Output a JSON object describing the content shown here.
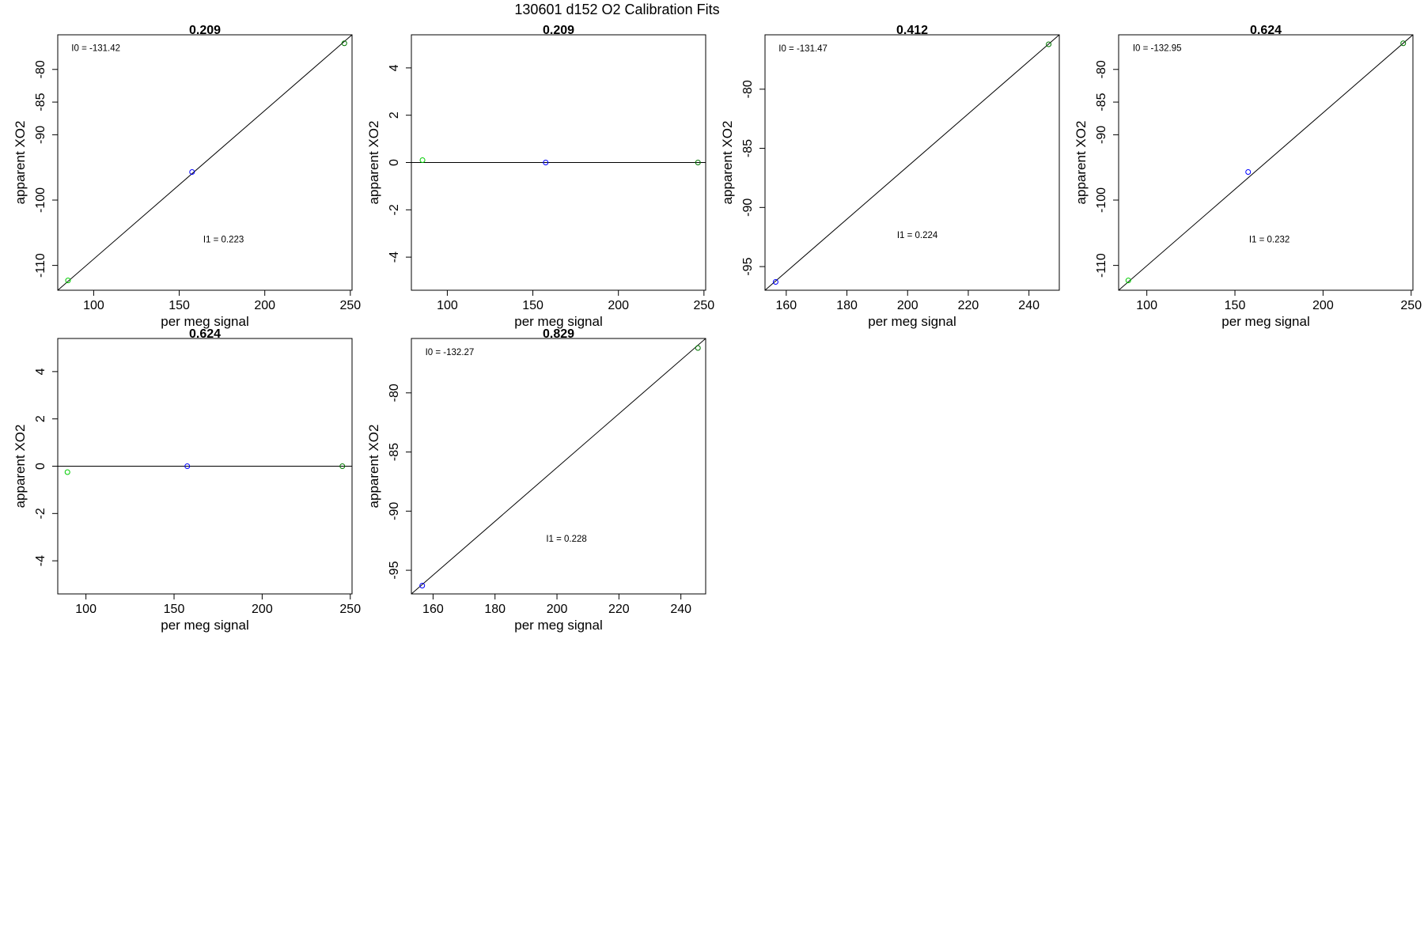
{
  "figure_title": "130601   d152   O2 Calibration Fits",
  "colors": {
    "fit_line": "#000000",
    "frame": "#000000",
    "point_low": "#00cc00",
    "point_mid": "#0000ff",
    "point_high": "#007700"
  },
  "chart_data": [
    {
      "type": "scatter",
      "title": "0.209",
      "xlabel": "per meg signal",
      "ylabel": "apparent XO2",
      "xlim": [
        79,
        251
      ],
      "ylim": [
        -113.8,
        -74.7
      ],
      "xticks": [
        100,
        150,
        200,
        250
      ],
      "yticks": [
        -80,
        -85,
        -90,
        -100,
        -110
      ],
      "points": [
        {
          "x": 85,
          "y": -112.3,
          "color": "#00cc00"
        },
        {
          "x": 157.5,
          "y": -95.7,
          "color": "#0000ff"
        },
        {
          "x": 246.5,
          "y": -76.0,
          "color": "#007700"
        }
      ],
      "fit": {
        "x1": 79,
        "y1": -113.8,
        "x2": 251,
        "y2": -74.7
      },
      "annotations": [
        {
          "text": "I0 =  -131.42",
          "x": 87,
          "y": -77.2
        },
        {
          "text": "I1 =  0.223",
          "x": 164,
          "y": -106.5
        }
      ]
    },
    {
      "type": "scatter",
      "title": "0.209",
      "xlabel": "per meg signal",
      "ylabel": "apparent XO2",
      "xlim": [
        79,
        251
      ],
      "ylim": [
        -5.4,
        5.4
      ],
      "xticks": [
        100,
        150,
        200,
        250
      ],
      "yticks": [
        4,
        2,
        0,
        -2,
        -4
      ],
      "points": [
        {
          "x": 85.5,
          "y": 0.1,
          "color": "#00cc00"
        },
        {
          "x": 157.5,
          "y": 0.0,
          "color": "#0000ff"
        },
        {
          "x": 246.5,
          "y": 0.0,
          "color": "#007700"
        }
      ],
      "fit": {
        "x1": 79,
        "y1": 0,
        "x2": 251,
        "y2": 0
      },
      "annotations": []
    },
    {
      "type": "scatter",
      "title": "0.412",
      "xlabel": "per meg signal",
      "ylabel": "apparent XO2",
      "xlim": [
        153,
        250
      ],
      "ylim": [
        -97.0,
        -75.4
      ],
      "xticks": [
        160,
        180,
        200,
        220,
        240
      ],
      "yticks": [
        -80,
        -85,
        -90,
        -95
      ],
      "points": [
        {
          "x": 156.5,
          "y": -96.3,
          "color": "#0000ff"
        },
        {
          "x": 246.5,
          "y": -76.2,
          "color": "#007700"
        }
      ],
      "fit": {
        "x1": 153,
        "y1": -97.0,
        "x2": 250,
        "y2": -75.4
      },
      "annotations": [
        {
          "text": "I0 =  -131.47",
          "x": 157.5,
          "y": -76.8
        },
        {
          "text": "I1 =  0.224",
          "x": 196.5,
          "y": -92.6
        }
      ]
    },
    {
      "type": "scatter",
      "title": "0.624",
      "xlabel": "per meg signal",
      "ylabel": "apparent XO2",
      "xlim": [
        84,
        251
      ],
      "ylim": [
        -113.8,
        -74.7
      ],
      "xticks": [
        100,
        150,
        200,
        250
      ],
      "yticks": [
        -80,
        -85,
        -90,
        -100,
        -110
      ],
      "points": [
        {
          "x": 89.5,
          "y": -112.3,
          "color": "#00cc00"
        },
        {
          "x": 157.5,
          "y": -95.7,
          "color": "#0000ff"
        },
        {
          "x": 245.5,
          "y": -76.0,
          "color": "#007700"
        }
      ],
      "fit": {
        "x1": 84,
        "y1": -113.8,
        "x2": 251,
        "y2": -74.7
      },
      "annotations": [
        {
          "text": "I0 =  -132.95",
          "x": 92,
          "y": -77.2
        },
        {
          "text": "I1 =  0.232",
          "x": 158,
          "y": -106.5
        }
      ]
    },
    {
      "type": "scatter",
      "title": "0.624",
      "xlabel": "per meg signal",
      "ylabel": "apparent XO2",
      "xlim": [
        84,
        251
      ],
      "ylim": [
        -5.4,
        5.4
      ],
      "xticks": [
        100,
        150,
        200,
        250
      ],
      "yticks": [
        4,
        2,
        0,
        -2,
        -4
      ],
      "points": [
        {
          "x": 89.5,
          "y": -0.25,
          "color": "#00cc00"
        },
        {
          "x": 157.5,
          "y": 0.0,
          "color": "#0000ff"
        },
        {
          "x": 245.5,
          "y": 0.0,
          "color": "#007700"
        }
      ],
      "fit": {
        "x1": 84,
        "y1": 0,
        "x2": 251,
        "y2": 0
      },
      "annotations": []
    },
    {
      "type": "scatter",
      "title": "0.829",
      "xlabel": "per meg signal",
      "ylabel": "apparent XO2",
      "xlim": [
        153,
        248
      ],
      "ylim": [
        -97.0,
        -75.4
      ],
      "xticks": [
        160,
        180,
        200,
        220,
        240
      ],
      "yticks": [
        -80,
        -85,
        -90,
        -95
      ],
      "points": [
        {
          "x": 156.5,
          "y": -96.3,
          "color": "#0000ff"
        },
        {
          "x": 245.5,
          "y": -76.2,
          "color": "#007700"
        }
      ],
      "fit": {
        "x1": 153,
        "y1": -97.0,
        "x2": 248,
        "y2": -75.4
      },
      "annotations": [
        {
          "text": "I0 =  -132.27",
          "x": 157.5,
          "y": -76.8
        },
        {
          "text": "I1 =  0.228",
          "x": 196.5,
          "y": -92.6
        }
      ]
    }
  ]
}
